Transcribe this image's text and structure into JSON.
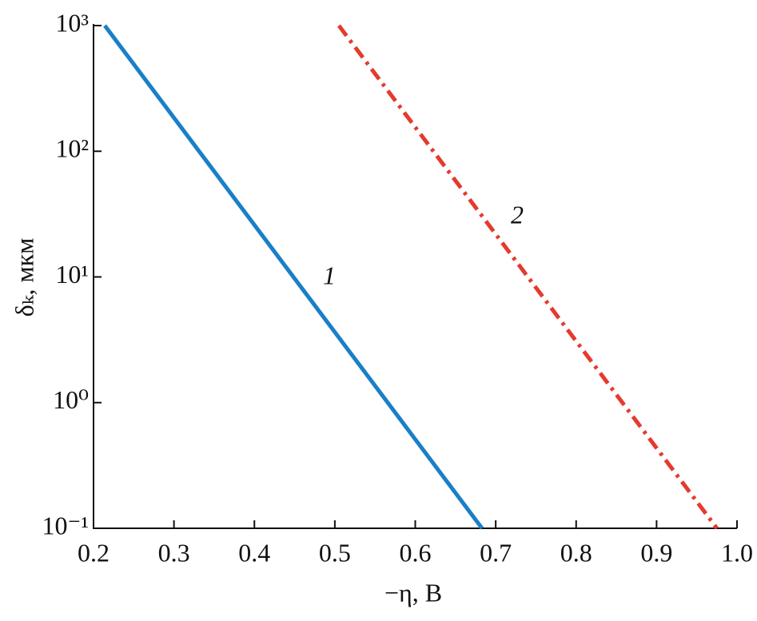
{
  "chart_data": {
    "type": "line",
    "x_label": "−η, В",
    "y_label": "δₖ, мкм",
    "annotations": [
      "1",
      "2"
    ],
    "series": [
      {
        "name": "1",
        "color": "#1a7fc6",
        "dash": "solid",
        "x": [
          0.214,
          0.683
        ],
        "values": [
          1000,
          0.1
        ]
      },
      {
        "name": "2",
        "color": "#e53a2e",
        "dash": "dashdot",
        "x": [
          0.505,
          0.975
        ],
        "values": [
          1000,
          0.1
        ]
      }
    ],
    "xlim": [
      0.2,
      1.0
    ],
    "xticks": [
      0.2,
      0.3,
      0.4,
      0.5,
      0.6,
      0.7,
      0.8,
      0.9,
      {
        "value": 1.0,
        "label": "1.0"
      }
    ],
    "ylim": [
      0.1,
      1000
    ],
    "yscale": "log",
    "yticks": [
      {
        "value": 0.1,
        "label": "10⁻¹"
      },
      {
        "value": 1,
        "label": "10⁰"
      },
      {
        "value": 10,
        "label": "10¹"
      },
      {
        "value": 100,
        "label": "10²"
      },
      {
        "value": 1000,
        "label": "10³"
      }
    ],
    "grid": false
  }
}
